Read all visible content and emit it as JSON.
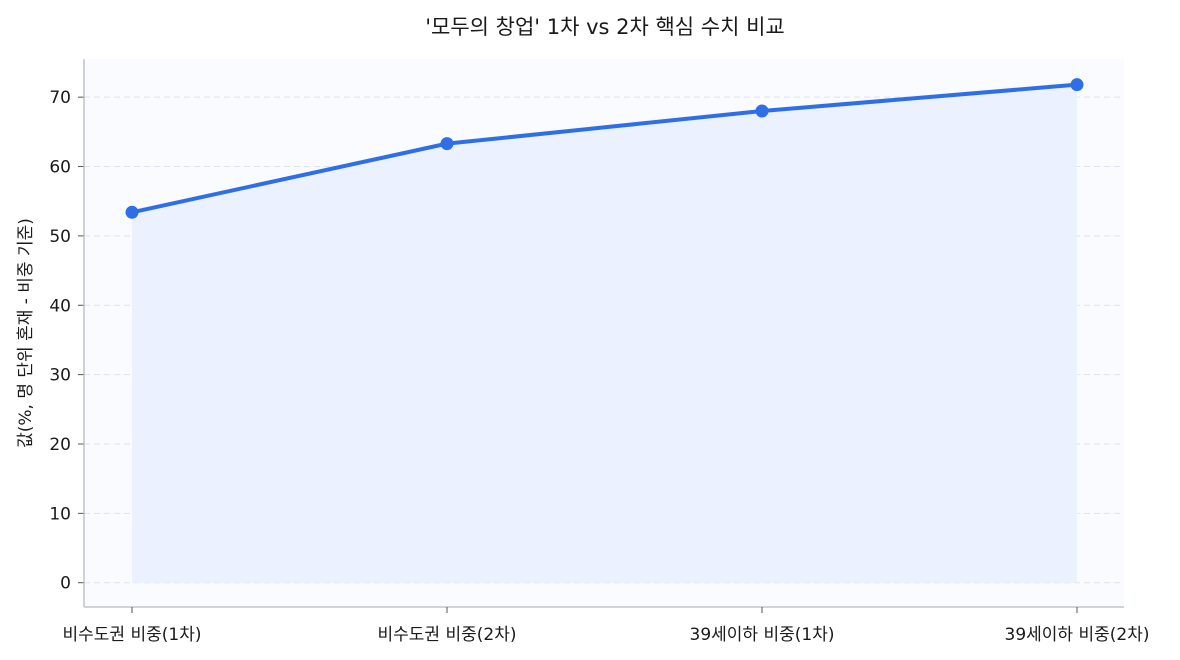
{
  "chart_data": {
    "type": "area",
    "title": "'모두의 창업' 1차 vs 2차 핵심 수치 비교",
    "xlabel": "",
    "ylabel": "값(%, 명 단위 혼재 - 비중 기준)",
    "categories": [
      "비수도권 비중(1차)",
      "비수도권 비중(2차)",
      "39세이하 비중(1차)",
      "39세이하 비중(2차)"
    ],
    "values": [
      53.4,
      63.3,
      68.0,
      71.8
    ],
    "ylim": [
      -3.5,
      75.5
    ],
    "yticks": [
      0,
      10,
      20,
      30,
      40,
      50,
      60,
      70
    ],
    "grid": true,
    "colors": {
      "line": "#2f6fe6",
      "fill": "#eaf0fe",
      "plot_bg": "#f9fbff",
      "grid": "#dde3ee",
      "axis": "#b5b9c2"
    }
  }
}
